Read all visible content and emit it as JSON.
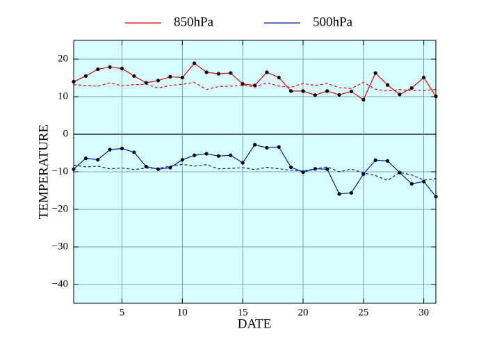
{
  "chart_data": {
    "type": "line",
    "x_label": "DATE",
    "y_label": "TEMPERATURE",
    "x": [
      1,
      2,
      3,
      4,
      5,
      6,
      7,
      8,
      9,
      10,
      11,
      12,
      13,
      14,
      15,
      16,
      17,
      18,
      19,
      20,
      21,
      22,
      23,
      24,
      25,
      26,
      27,
      28,
      29,
      30,
      31
    ],
    "series": [
      {
        "name": "850hPa",
        "color": "#e00000",
        "values": [
          14,
          15.5,
          17.3,
          17.9,
          17.5,
          15.5,
          13.7,
          14.3,
          15.3,
          15.1,
          18.9,
          16.5,
          16.1,
          16.3,
          13.4,
          13.0,
          16.5,
          15.1,
          11.5,
          11.5,
          10.4,
          11.5,
          10.5,
          11.4,
          9.2,
          16.3,
          13.1,
          10.6,
          12.3,
          15.1,
          10.1
        ],
        "dashed_values": [
          13.2,
          13,
          12.8,
          13.7,
          12.9,
          13.2,
          13.3,
          12.3,
          13,
          13.3,
          13.8,
          11.9,
          12.7,
          12.8,
          13.1,
          12.6,
          13.7,
          12.8,
          12.5,
          13.5,
          13,
          13.5,
          12.4,
          12.2,
          13.8,
          12,
          11.5,
          11.9,
          11.6,
          11.7,
          11.9
        ]
      },
      {
        "name": "500hPa",
        "color": "#0018b0",
        "values": [
          -9.3,
          -6.4,
          -6.8,
          -4.1,
          -3.8,
          -4.8,
          -8.6,
          -9.3,
          -8.9,
          -6.8,
          -5.6,
          -5.2,
          -5.8,
          -5.6,
          -7.6,
          -2.8,
          -3.6,
          -3.4,
          -8.8,
          -10.1,
          -9.2,
          -9.3,
          -15.9,
          -15.6,
          -10.6,
          -6.9,
          -7.1,
          -10.2,
          -13.2,
          -12.6,
          -16.6
        ],
        "dashed_values": [
          -8.2,
          -8.7,
          -8.5,
          -9.2,
          -9.0,
          -9.4,
          -9.0,
          -9.1,
          -8.5,
          -8,
          -8.5,
          -8.1,
          -9.2,
          -9.1,
          -8.9,
          -9.4,
          -8.8,
          -9.2,
          -9.6,
          -9.8,
          -9.2,
          -8.7,
          -10,
          -9.3,
          -10.3,
          -11,
          -12.3,
          -10.2,
          -10.8,
          -12.2,
          -11.8
        ]
      }
    ],
    "xlim": [
      1,
      31
    ],
    "xticks": [
      5,
      10,
      15,
      20,
      25,
      30
    ],
    "ylim": [
      -45,
      25
    ],
    "yticks": [
      {
        "value": -40,
        "label": "−40"
      },
      {
        "value": -30,
        "label": "−30"
      },
      {
        "value": -20,
        "label": "−20"
      },
      {
        "value": -10,
        "label": "−10"
      },
      0,
      10,
      20
    ],
    "grid": true,
    "background": "#d8ffff",
    "marker_color": "#000000"
  }
}
